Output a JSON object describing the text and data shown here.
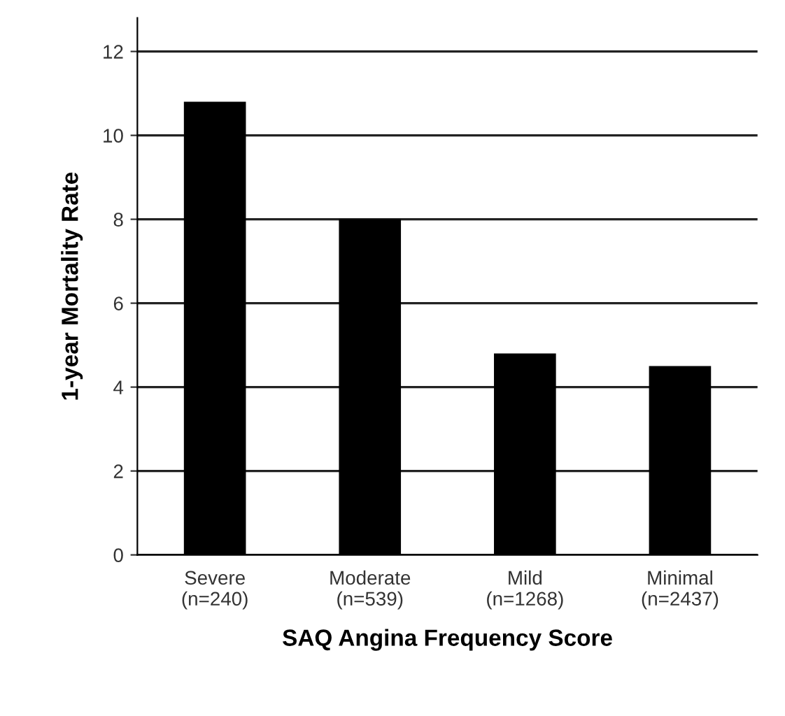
{
  "chart_data": {
    "type": "bar",
    "xlabel": "SAQ Angina Frequency Score",
    "ylabel": "1-year Mortality Rate",
    "categories": [
      "Severe\n(n=240)",
      "Moderate\n(n=539)",
      "Mild\n(n=1268)",
      "Minimal\n(n=2437)"
    ],
    "values": [
      10.8,
      8.0,
      4.8,
      4.5
    ],
    "color": "#000000",
    "ylim": [
      0,
      12.8
    ],
    "yticks": [
      0,
      2,
      4,
      6,
      8,
      10,
      12
    ],
    "grid": "y",
    "legend": false
  }
}
